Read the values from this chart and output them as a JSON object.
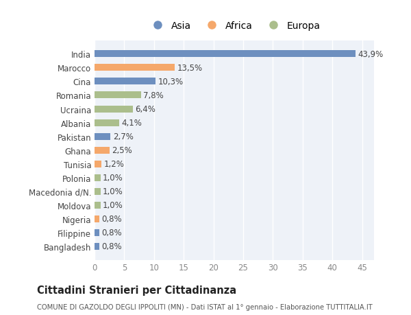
{
  "countries": [
    "Bangladesh",
    "Filippine",
    "Nigeria",
    "Moldova",
    "Macedonia d/N.",
    "Polonia",
    "Tunisia",
    "Ghana",
    "Pakistan",
    "Albania",
    "Ucraina",
    "Romania",
    "Cina",
    "Marocco",
    "India"
  ],
  "values": [
    0.8,
    0.8,
    0.8,
    1.0,
    1.0,
    1.0,
    1.2,
    2.5,
    2.7,
    4.1,
    6.4,
    7.8,
    10.3,
    13.5,
    43.9
  ],
  "labels": [
    "0,8%",
    "0,8%",
    "0,8%",
    "1,0%",
    "1,0%",
    "1,0%",
    "1,2%",
    "2,5%",
    "2,7%",
    "4,1%",
    "6,4%",
    "7,8%",
    "10,3%",
    "13,5%",
    "43,9%"
  ],
  "colors": [
    "#6d8fbf",
    "#6d8fbf",
    "#f5a86b",
    "#abbe8c",
    "#abbe8c",
    "#abbe8c",
    "#f5a86b",
    "#f5a86b",
    "#6d8fbf",
    "#abbe8c",
    "#abbe8c",
    "#abbe8c",
    "#6d8fbf",
    "#f5a86b",
    "#6d8fbf"
  ],
  "legend": [
    {
      "label": "Asia",
      "color": "#6d8fbf"
    },
    {
      "label": "Africa",
      "color": "#f5a86b"
    },
    {
      "label": "Europa",
      "color": "#abbe8c"
    }
  ],
  "xlim": [
    0,
    47
  ],
  "xticks": [
    0,
    5,
    10,
    15,
    20,
    25,
    30,
    35,
    40,
    45
  ],
  "title": "Cittadini Stranieri per Cittadinanza",
  "subtitle": "COMUNE DI GAZOLDO DEGLI IPPOLITI (MN) - Dati ISTAT al 1° gennaio - Elaborazione TUTTITALIA.IT",
  "bg_color": "#ffffff",
  "plot_bg_color": "#eef2f8",
  "grid_color": "#ffffff",
  "label_fontsize": 8.5,
  "tick_fontsize": 8.5,
  "bar_height": 0.5
}
